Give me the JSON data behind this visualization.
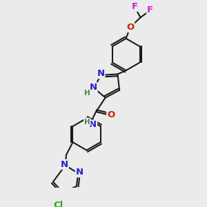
{
  "background_color": "#ebebeb",
  "bond_color": "#1a1a1a",
  "bond_width": 1.5,
  "colors": {
    "N": "#2222cc",
    "O": "#cc2200",
    "Cl": "#22aa22",
    "F": "#cc22cc",
    "H": "#448844",
    "C": "#1a1a1a"
  },
  "fs": 9.5,
  "fs_small": 7.5
}
